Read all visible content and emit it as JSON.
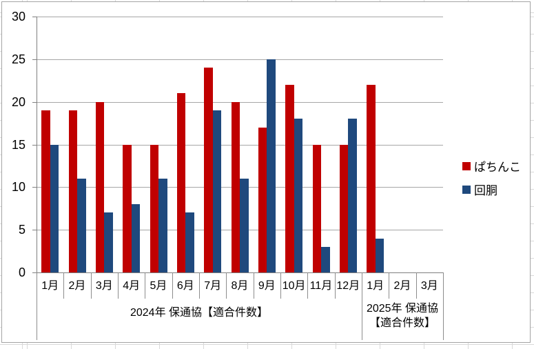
{
  "chart_data": {
    "type": "bar",
    "categories": [
      "1月",
      "2月",
      "3月",
      "4月",
      "5月",
      "6月",
      "7月",
      "8月",
      "9月",
      "10月",
      "11月",
      "12月",
      "1月",
      "2月",
      "3月"
    ],
    "group_labels": [
      {
        "label": "2024年 保通協【適合件数】",
        "span": 12
      },
      {
        "label": "2025年 保通協【適合件数】",
        "span": 3
      }
    ],
    "series": [
      {
        "name": "ぱちんこ",
        "color": "#C00000",
        "values": [
          19,
          19,
          20,
          15,
          15,
          21,
          24,
          20,
          17,
          22,
          15,
          15,
          22,
          null,
          null
        ]
      },
      {
        "name": "回胴",
        "color": "#1F497D",
        "values": [
          15,
          11,
          7,
          8,
          11,
          7,
          19,
          11,
          25,
          18,
          3,
          18,
          4,
          null,
          null
        ]
      }
    ],
    "title": "",
    "xlabel": "",
    "ylabel": "",
    "ylim": [
      0,
      30
    ],
    "yticks": [
      0,
      5,
      10,
      15,
      20,
      25,
      30
    ],
    "grid": true,
    "legend_position": "right",
    "colors": {
      "gridline": "#a6a6a6",
      "axis": "#7f7f7f",
      "text": "#000000",
      "chart_border": "#a3a3a3",
      "worksheet_gridline": "#d9d9d9",
      "background": "#ffffff"
    }
  }
}
